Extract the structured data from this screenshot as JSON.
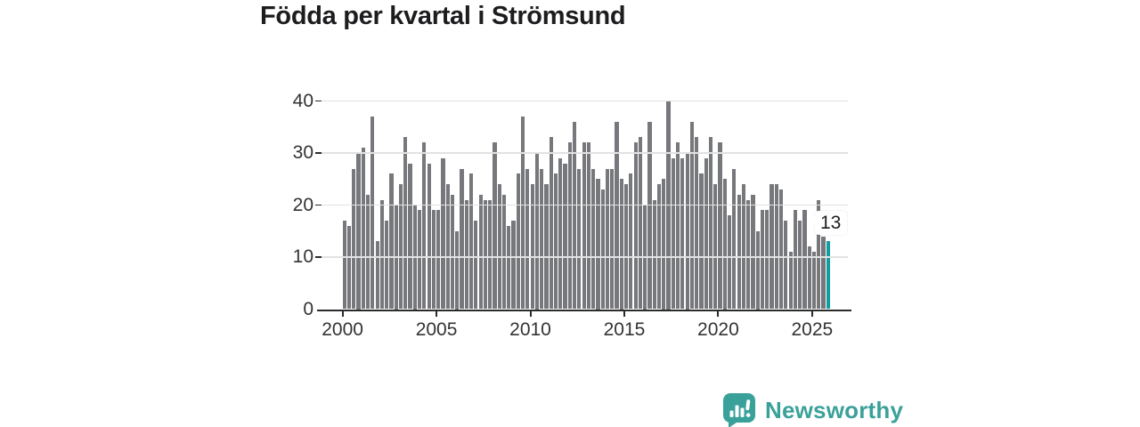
{
  "page": {
    "background": "#ffffff"
  },
  "header": {
    "title": "Födda per kvartal i Strömsund"
  },
  "chart_data": {
    "type": "bar",
    "title": "Födda per kvartal i Strömsund",
    "frequency": "quarterly",
    "x_start": "2000 Q1",
    "x_end": "2025 Q4",
    "values": [
      17,
      16,
      27,
      30,
      31,
      22,
      37,
      13,
      21,
      17,
      26,
      20,
      24,
      33,
      28,
      20,
      19,
      32,
      28,
      19,
      19,
      29,
      24,
      22,
      15,
      27,
      21,
      26,
      17,
      22,
      21,
      21,
      32,
      24,
      22,
      16,
      17,
      26,
      37,
      27,
      24,
      30,
      27,
      24,
      33,
      26,
      29,
      28,
      32,
      36,
      27,
      32,
      32,
      27,
      25,
      23,
      27,
      27,
      36,
      25,
      24,
      26,
      32,
      33,
      20,
      36,
      21,
      24,
      25,
      40,
      29,
      32,
      29,
      30,
      36,
      33,
      26,
      29,
      33,
      24,
      32,
      25,
      18,
      27,
      22,
      24,
      21,
      22,
      15,
      19,
      19,
      24,
      24,
      23,
      17,
      11,
      19,
      17,
      19,
      12,
      11,
      21,
      14,
      13
    ],
    "y_ticks": [
      0,
      10,
      20,
      30,
      40
    ],
    "ylim": [
      0,
      40
    ],
    "x_tick_labels": [
      "2000",
      "2005",
      "2010",
      "2015",
      "2020",
      "2025"
    ],
    "x_tick_quarter_index": [
      0,
      20,
      40,
      60,
      80,
      100
    ],
    "grid": true,
    "legend": "none",
    "bar_color": "#77787c",
    "highlight_color": "#129ea0",
    "highlight_index": 103,
    "annotation": {
      "text": "13",
      "target": "last-bar"
    }
  },
  "axis": {
    "grid_color": "#e2e2e2",
    "axis_color": "#2b2b2b",
    "label_color": "#333333"
  },
  "callout": {
    "label": "13"
  },
  "branding": {
    "name": "Newsworthy",
    "color": "#3aa19a",
    "icon": "newsworthy-speech-bubble-chart"
  }
}
